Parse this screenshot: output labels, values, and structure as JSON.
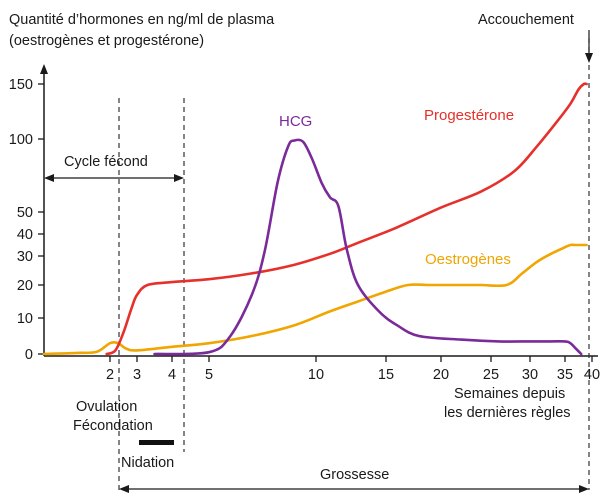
{
  "chart_data": {
    "type": "line",
    "title_lines": [
      "Quantité d’hormones en ng/ml de plasma",
      "(oestrogènes et progestérone)"
    ],
    "xlabel_lines": [
      "Semaines depuis",
      "les dernières règles"
    ],
    "x_ticks": [
      "2",
      "3",
      "4",
      "5",
      "10",
      "15",
      "20",
      "25",
      "30",
      "35",
      "40"
    ],
    "y_ticks": [
      "0",
      "10",
      "20",
      "30",
      "40",
      "50",
      "100",
      "150"
    ],
    "series": [
      {
        "name": "Progestérone",
        "color": "#e5302c",
        "points": [
          [
            1.9,
            0
          ],
          [
            2.2,
            1
          ],
          [
            2.5,
            6
          ],
          [
            2.8,
            13
          ],
          [
            3.0,
            17
          ],
          [
            3.3,
            20
          ],
          [
            4.0,
            21
          ],
          [
            5,
            22
          ],
          [
            7,
            24
          ],
          [
            9,
            27
          ],
          [
            11,
            31
          ],
          [
            13,
            36
          ],
          [
            16,
            43
          ],
          [
            20,
            53
          ],
          [
            24,
            64
          ],
          [
            28,
            78
          ],
          [
            31,
            95
          ],
          [
            34,
            117
          ],
          [
            36,
            132
          ],
          [
            37.5,
            145
          ],
          [
            38.5,
            150
          ],
          [
            39,
            150
          ]
        ]
      },
      {
        "name": "Oestrogènes",
        "color": "#f0a500",
        "points": [
          [
            0,
            0
          ],
          [
            1.0,
            0.3
          ],
          [
            1.6,
            0.6
          ],
          [
            2.0,
            3
          ],
          [
            2.3,
            3
          ],
          [
            2.6,
            1.5
          ],
          [
            3.0,
            1
          ],
          [
            4.0,
            2
          ],
          [
            5,
            3
          ],
          [
            7,
            5
          ],
          [
            9,
            8
          ],
          [
            11,
            12
          ],
          [
            13,
            15
          ],
          [
            15,
            18
          ],
          [
            17,
            20
          ],
          [
            19,
            20
          ],
          [
            22,
            20
          ],
          [
            24,
            20
          ],
          [
            27,
            20
          ],
          [
            29,
            24
          ],
          [
            31,
            28
          ],
          [
            33,
            31
          ],
          [
            35,
            34
          ],
          [
            36,
            35
          ],
          [
            37,
            35
          ],
          [
            38,
            35
          ],
          [
            39,
            35
          ]
        ]
      },
      {
        "name": "HCG",
        "color": "#7b2a9a",
        "points": [
          [
            3.5,
            0
          ],
          [
            5,
            0.5
          ],
          [
            6,
            5
          ],
          [
            7,
            17
          ],
          [
            7.6,
            32
          ],
          [
            8.2,
            70
          ],
          [
            8.7,
            95
          ],
          [
            9.0,
            99
          ],
          [
            9.4,
            98
          ],
          [
            9.8,
            87
          ],
          [
            10.4,
            70
          ],
          [
            11,
            60
          ],
          [
            11.6,
            54
          ],
          [
            12.2,
            33
          ],
          [
            13,
            20
          ],
          [
            14.5,
            12
          ],
          [
            16,
            8
          ],
          [
            18,
            5
          ],
          [
            22,
            4
          ],
          [
            26,
            3.5
          ],
          [
            30,
            3.5
          ],
          [
            33,
            3.5
          ],
          [
            35,
            3.5
          ],
          [
            36,
            3
          ],
          [
            37,
            1.5
          ],
          [
            38,
            0
          ]
        ]
      }
    ],
    "series_labels": [
      {
        "text": "Progestérone",
        "color": "#e5302c"
      },
      {
        "text": "Oestrogènes",
        "color": "#f0a500"
      },
      {
        "text": "HCG",
        "color": "#7b2a9a"
      }
    ],
    "annotations": {
      "accouchement": "Accouchement",
      "cycle_fecond": "Cycle fécond",
      "ovulation": "Ovulation",
      "fecondation": "Fécondation",
      "nidation": "Nidation",
      "grossesse": "Grossesse"
    },
    "grid": false
  }
}
